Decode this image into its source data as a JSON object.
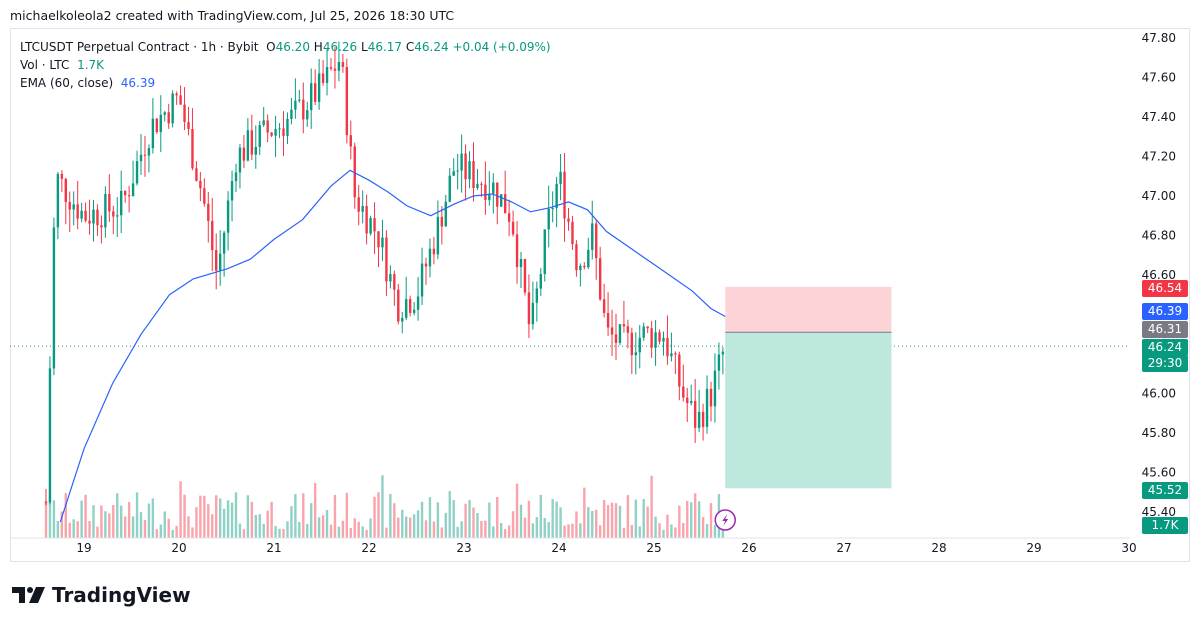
{
  "header": {
    "credit": "michaelkoleola2 created with TradingView.com, Jul 25, 2026 18:30 UTC"
  },
  "legend": {
    "symbol": "LTCUSDT Perpetual Contract · 1h · Bybit",
    "o_label": "O",
    "o": "46.20",
    "h_label": "H",
    "h": "46.26",
    "l_label": "L",
    "l": "46.17",
    "c_label": "C",
    "c": "46.24",
    "change": "+0.04 (+0.09%)",
    "vol_label": "Vol · LTC",
    "vol": "1.7K",
    "ema_label": "EMA (60, close)",
    "ema": "46.39"
  },
  "price_labels": {
    "target": "46.54",
    "ema": "46.39",
    "entry": "46.31",
    "last": "46.24",
    "countdown": "29:30",
    "stop": "45.52",
    "volume": "1.7K"
  },
  "brand": {
    "name": "TradingView"
  },
  "colors": {
    "up": "#089981",
    "down": "#f23645",
    "ema": "#2962ff",
    "profit_zone": "#b7e4da",
    "loss_zone": "#fccfd3"
  },
  "chart_data": {
    "type": "candlestick",
    "interval": "1h",
    "symbol": "LTCUSDT Perpetual Contract",
    "exchange": "Bybit",
    "y_ticks": [
      "47.80",
      "47.60",
      "47.40",
      "47.20",
      "47.00",
      "46.80",
      "46.60",
      "46.40",
      "46.20",
      "46.00",
      "45.80",
      "45.60",
      "45.40"
    ],
    "x_ticks": [
      "19",
      "20",
      "21",
      "22",
      "23",
      "24",
      "25",
      "26",
      "27",
      "28",
      "29",
      "30"
    ],
    "ylim": [
      45.3,
      47.88
    ],
    "ema_period": 60,
    "position": {
      "side": "long",
      "entry": 46.31,
      "target": 46.54,
      "stop": 45.52,
      "start_day": 25.75,
      "end_day": 27.5
    },
    "last_price": 46.24,
    "ema_value": 46.39,
    "ema_path": [
      [
        18.75,
        45.35
      ],
      [
        19.0,
        45.72
      ],
      [
        19.3,
        46.05
      ],
      [
        19.6,
        46.3
      ],
      [
        19.9,
        46.5
      ],
      [
        20.15,
        46.58
      ],
      [
        20.5,
        46.63
      ],
      [
        20.75,
        46.68
      ],
      [
        21.0,
        46.78
      ],
      [
        21.3,
        46.88
      ],
      [
        21.6,
        47.05
      ],
      [
        21.8,
        47.13
      ],
      [
        22.0,
        47.08
      ],
      [
        22.2,
        47.02
      ],
      [
        22.4,
        46.95
      ],
      [
        22.65,
        46.9
      ],
      [
        22.9,
        46.96
      ],
      [
        23.1,
        47.0
      ],
      [
        23.3,
        47.01
      ],
      [
        23.5,
        46.97
      ],
      [
        23.7,
        46.92
      ],
      [
        23.9,
        46.94
      ],
      [
        24.1,
        46.97
      ],
      [
        24.3,
        46.93
      ],
      [
        24.5,
        46.82
      ],
      [
        24.8,
        46.72
      ],
      [
        25.1,
        46.62
      ],
      [
        25.4,
        46.52
      ],
      [
        25.6,
        46.43
      ],
      [
        25.75,
        46.39
      ]
    ],
    "volume_last": "1.7K"
  }
}
